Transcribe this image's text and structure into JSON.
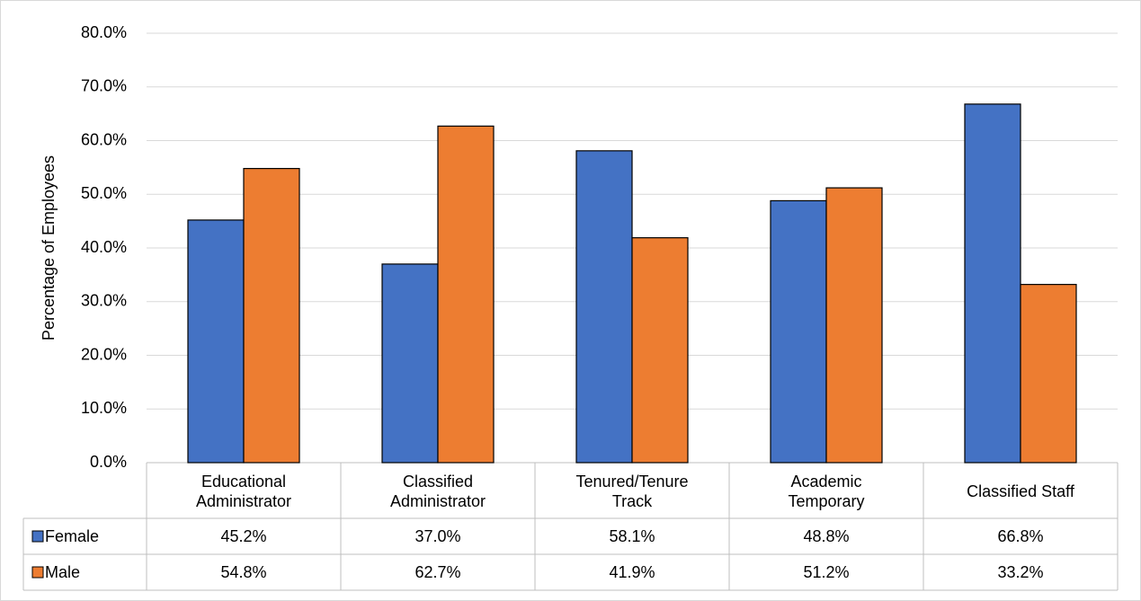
{
  "chart_data": {
    "type": "bar",
    "y_label": "Percentage of Employees",
    "categories": [
      "Educational Administrator",
      "Classified Administrator",
      "Tenured/Tenure Track",
      "Academic Temporary",
      "Classified Staff"
    ],
    "series": [
      {
        "name": "Female",
        "color": "#4472c4",
        "values": [
          45.2,
          37.0,
          58.1,
          48.8,
          66.8
        ],
        "value_labels": [
          "45.2%",
          "37.0%",
          "58.1%",
          "48.8%",
          "66.8%"
        ]
      },
      {
        "name": "Male",
        "color": "#ed7d31",
        "values": [
          54.8,
          62.7,
          41.9,
          51.2,
          33.2
        ],
        "value_labels": [
          "54.8%",
          "62.7%",
          "41.9%",
          "51.2%",
          "33.2%"
        ]
      }
    ],
    "ylim": [
      0,
      80
    ],
    "yticks": [
      {
        "value": 0,
        "label": "0.0%"
      },
      {
        "value": 10,
        "label": "10.0%"
      },
      {
        "value": 20,
        "label": "20.0%"
      },
      {
        "value": 30,
        "label": "30.0%"
      },
      {
        "value": 40,
        "label": "40.0%"
      },
      {
        "value": 50,
        "label": "50.0%"
      },
      {
        "value": 60,
        "label": "60.0%"
      },
      {
        "value": 70,
        "label": "70.0%"
      },
      {
        "value": 80,
        "label": "80.0%"
      }
    ],
    "grid": true
  }
}
